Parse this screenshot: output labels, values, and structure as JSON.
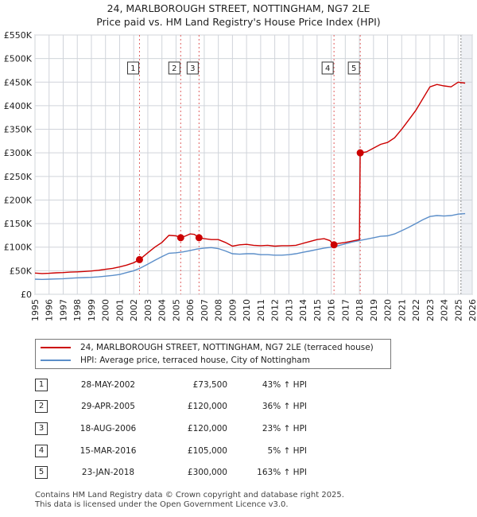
{
  "title_line1": "24, MARLBOROUGH STREET, NOTTINGHAM, NG7 2LE",
  "title_line2": "Price paid vs. HM Land Registry's House Price Index (HPI)",
  "colors": {
    "property": "#cc0000",
    "hpi": "#5b8ec9",
    "grid": "#d0d4da",
    "plot_bg": "#ffffff",
    "marker_line": "#e06060"
  },
  "chart_data": {
    "type": "line",
    "x_range": [
      1995,
      2026
    ],
    "y_range": [
      0,
      550000
    ],
    "y_ticks": [
      {
        "value": 0,
        "label": "£0"
      },
      {
        "value": 50000,
        "label": "£50K"
      },
      {
        "value": 100000,
        "label": "£100K"
      },
      {
        "value": 150000,
        "label": "£150K"
      },
      {
        "value": 200000,
        "label": "£200K"
      },
      {
        "value": 250000,
        "label": "£250K"
      },
      {
        "value": 300000,
        "label": "£300K"
      },
      {
        "value": 350000,
        "label": "£350K"
      },
      {
        "value": 400000,
        "label": "£400K"
      },
      {
        "value": 450000,
        "label": "£450K"
      },
      {
        "value": 500000,
        "label": "£500K"
      },
      {
        "value": 550000,
        "label": "£550K"
      }
    ],
    "x_ticks": [
      "1995",
      "1996",
      "1997",
      "1998",
      "1999",
      "2000",
      "2001",
      "2002",
      "2003",
      "2004",
      "2005",
      "2006",
      "2007",
      "2008",
      "2009",
      "2010",
      "2011",
      "2012",
      "2013",
      "2014",
      "2015",
      "2016",
      "2017",
      "2018",
      "2019",
      "2020",
      "2021",
      "2022",
      "2023",
      "2024",
      "2025",
      "2026"
    ],
    "shaded_after": 2025.2,
    "series": [
      {
        "name": "24, MARLBOROUGH STREET, NOTTINGHAM, NG7 2LE (terraced house)",
        "color": "#cc0000",
        "points": [
          [
            1995.0,
            45000
          ],
          [
            1995.5,
            44000
          ],
          [
            1996.0,
            44500
          ],
          [
            1996.5,
            45500
          ],
          [
            1997.0,
            46000
          ],
          [
            1997.5,
            47000
          ],
          [
            1998.0,
            47500
          ],
          [
            1998.5,
            48500
          ],
          [
            1999.0,
            49500
          ],
          [
            1999.5,
            51000
          ],
          [
            2000.0,
            53000
          ],
          [
            2000.5,
            55000
          ],
          [
            2001.0,
            58000
          ],
          [
            2001.5,
            62000
          ],
          [
            2002.0,
            67000
          ],
          [
            2002.41,
            73500
          ],
          [
            2003.0,
            88000
          ],
          [
            2003.5,
            100000
          ],
          [
            2004.0,
            110000
          ],
          [
            2004.5,
            125000
          ],
          [
            2005.0,
            124000
          ],
          [
            2005.33,
            120000
          ],
          [
            2005.7,
            124000
          ],
          [
            2006.0,
            128000
          ],
          [
            2006.3,
            127000
          ],
          [
            2006.63,
            120000
          ],
          [
            2007.0,
            118000
          ],
          [
            2007.5,
            116000
          ],
          [
            2008.0,
            116000
          ],
          [
            2008.5,
            110000
          ],
          [
            2009.0,
            102000
          ],
          [
            2009.5,
            105000
          ],
          [
            2010.0,
            106000
          ],
          [
            2010.5,
            104000
          ],
          [
            2011.0,
            103000
          ],
          [
            2011.5,
            104000
          ],
          [
            2012.0,
            102000
          ],
          [
            2012.5,
            103000
          ],
          [
            2013.0,
            103000
          ],
          [
            2013.5,
            104000
          ],
          [
            2014.0,
            108000
          ],
          [
            2014.5,
            112000
          ],
          [
            2015.0,
            116000
          ],
          [
            2015.5,
            118000
          ],
          [
            2015.9,
            114000
          ],
          [
            2016.2,
            105000
          ],
          [
            2016.5,
            108000
          ],
          [
            2017.0,
            110000
          ],
          [
            2017.5,
            113000
          ],
          [
            2018.0,
            116000
          ],
          [
            2018.06,
            300000
          ],
          [
            2018.5,
            302000
          ],
          [
            2019.0,
            310000
          ],
          [
            2019.5,
            318000
          ],
          [
            2020.0,
            322000
          ],
          [
            2020.5,
            332000
          ],
          [
            2021.0,
            350000
          ],
          [
            2021.5,
            370000
          ],
          [
            2022.0,
            390000
          ],
          [
            2022.5,
            415000
          ],
          [
            2023.0,
            440000
          ],
          [
            2023.5,
            445000
          ],
          [
            2024.0,
            442000
          ],
          [
            2024.5,
            440000
          ],
          [
            2025.0,
            450000
          ],
          [
            2025.5,
            448000
          ]
        ]
      },
      {
        "name": "HPI: Average price, terraced house, City of Nottingham",
        "color": "#5b8ec9",
        "points": [
          [
            1995.0,
            32000
          ],
          [
            1995.5,
            31500
          ],
          [
            1996.0,
            32000
          ],
          [
            1996.5,
            32500
          ],
          [
            1997.0,
            33000
          ],
          [
            1997.5,
            34000
          ],
          [
            1998.0,
            35000
          ],
          [
            1998.5,
            35500
          ],
          [
            1999.0,
            36000
          ],
          [
            1999.5,
            37000
          ],
          [
            2000.0,
            38500
          ],
          [
            2000.5,
            40000
          ],
          [
            2001.0,
            42000
          ],
          [
            2001.5,
            46000
          ],
          [
            2002.0,
            50000
          ],
          [
            2002.5,
            56000
          ],
          [
            2003.0,
            64000
          ],
          [
            2003.5,
            72000
          ],
          [
            2004.0,
            80000
          ],
          [
            2004.5,
            87000
          ],
          [
            2005.0,
            88000
          ],
          [
            2005.5,
            90000
          ],
          [
            2006.0,
            93000
          ],
          [
            2006.5,
            96000
          ],
          [
            2007.0,
            98000
          ],
          [
            2007.5,
            99000
          ],
          [
            2008.0,
            97000
          ],
          [
            2008.5,
            92000
          ],
          [
            2009.0,
            86000
          ],
          [
            2009.5,
            85000
          ],
          [
            2010.0,
            86000
          ],
          [
            2010.5,
            86000
          ],
          [
            2011.0,
            84000
          ],
          [
            2011.5,
            84000
          ],
          [
            2012.0,
            83000
          ],
          [
            2012.5,
            83000
          ],
          [
            2013.0,
            84000
          ],
          [
            2013.5,
            86000
          ],
          [
            2014.0,
            89000
          ],
          [
            2014.5,
            92000
          ],
          [
            2015.0,
            95000
          ],
          [
            2015.5,
            98000
          ],
          [
            2016.0,
            100000
          ],
          [
            2016.5,
            103000
          ],
          [
            2017.0,
            107000
          ],
          [
            2017.5,
            111000
          ],
          [
            2018.0,
            114000
          ],
          [
            2018.5,
            117000
          ],
          [
            2019.0,
            120000
          ],
          [
            2019.5,
            123000
          ],
          [
            2020.0,
            124000
          ],
          [
            2020.5,
            128000
          ],
          [
            2021.0,
            135000
          ],
          [
            2021.5,
            142000
          ],
          [
            2022.0,
            150000
          ],
          [
            2022.5,
            158000
          ],
          [
            2023.0,
            165000
          ],
          [
            2023.5,
            167000
          ],
          [
            2024.0,
            166000
          ],
          [
            2024.5,
            167000
          ],
          [
            2025.0,
            170000
          ],
          [
            2025.5,
            171000
          ]
        ]
      }
    ],
    "sales": [
      {
        "n": "1",
        "x": 2002.41,
        "price": 73500
      },
      {
        "n": "2",
        "x": 2005.33,
        "price": 120000
      },
      {
        "n": "3",
        "x": 2006.63,
        "price": 120000
      },
      {
        "n": "4",
        "x": 2016.2,
        "price": 105000
      },
      {
        "n": "5",
        "x": 2018.06,
        "price": 300000
      }
    ]
  },
  "legend": {
    "property_label": "24, MARLBOROUGH STREET, NOTTINGHAM, NG7 2LE (terraced house)",
    "hpi_label": "HPI: Average price, terraced house, City of Nottingham"
  },
  "table": [
    {
      "n": "1",
      "date": "28-MAY-2002",
      "price": "£73,500",
      "hpi": "43% ↑ HPI"
    },
    {
      "n": "2",
      "date": "29-APR-2005",
      "price": "£120,000",
      "hpi": "36% ↑ HPI"
    },
    {
      "n": "3",
      "date": "18-AUG-2006",
      "price": "£120,000",
      "hpi": "23% ↑ HPI"
    },
    {
      "n": "4",
      "date": "15-MAR-2016",
      "price": "£105,000",
      "hpi": "5% ↑ HPI"
    },
    {
      "n": "5",
      "date": "23-JAN-2018",
      "price": "£300,000",
      "hpi": "163% ↑ HPI"
    }
  ],
  "footer_line1": "Contains HM Land Registry data © Crown copyright and database right 2025.",
  "footer_line2": "This data is licensed under the Open Government Licence v3.0."
}
